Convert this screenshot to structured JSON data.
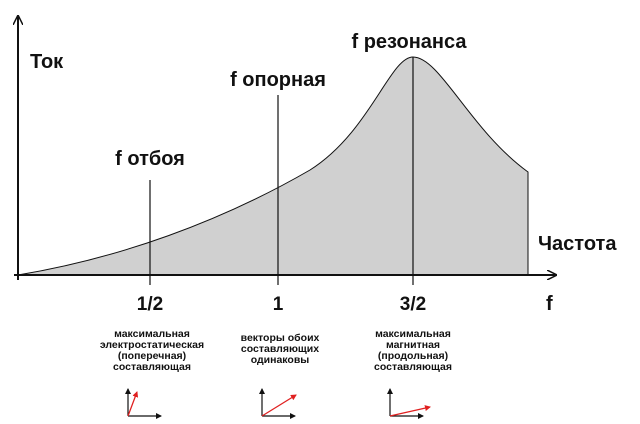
{
  "axes": {
    "y_label": "Ток",
    "x_label": "Частота",
    "x_symbol": "f"
  },
  "markers": [
    {
      "label": "f отбоя",
      "tick": "1/2",
      "description": [
        "максимальная",
        "электростатическая",
        "(поперечная)",
        "составляющая"
      ]
    },
    {
      "label": "f опорная",
      "tick": "1",
      "description": [
        "векторы обоих",
        "составляющих",
        "одинаковы"
      ]
    },
    {
      "label": "f резонанса",
      "tick": "3/2",
      "description": [
        "максимальная",
        "магнитная",
        "(продольная)",
        "составляющая"
      ]
    }
  ]
}
